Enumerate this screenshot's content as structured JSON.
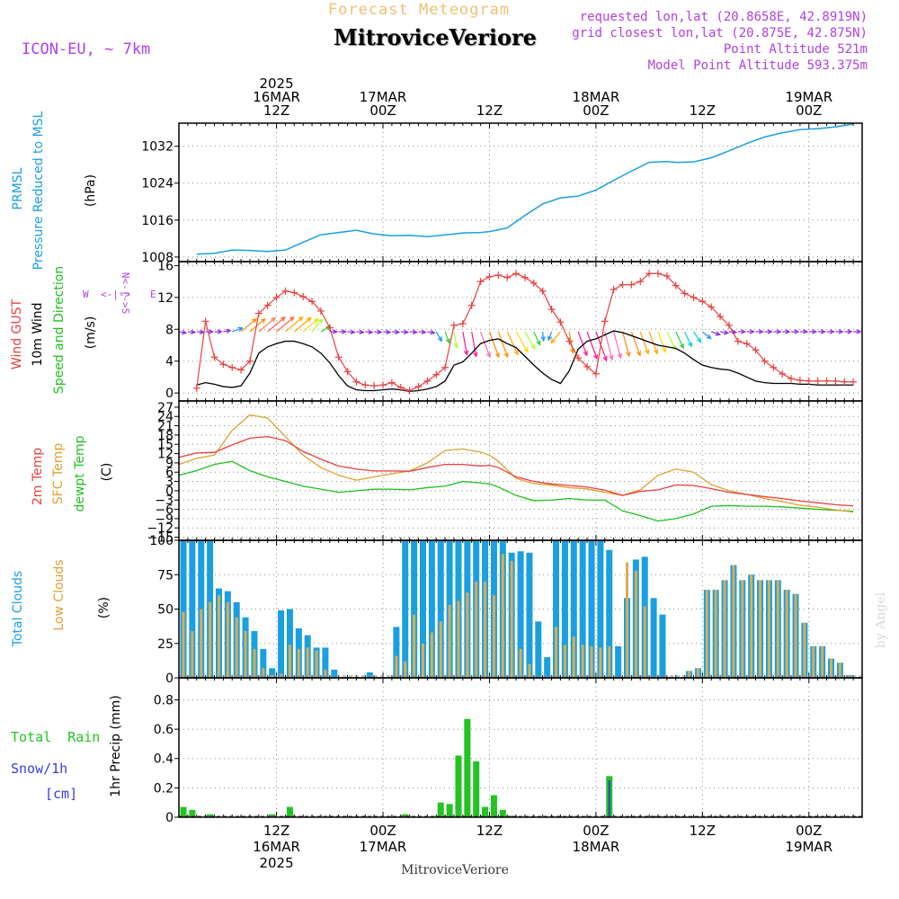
{
  "header": {
    "forecast_title": "Forecast Meteogram",
    "location": "MitroviceVeriore",
    "model": "ICON-EU, ~ 7km",
    "requested": "requested lon,lat (20.8658E, 42.8919N)",
    "closest": "grid closest lon,lat (20.875E, 42.875N)",
    "point_alt": "Point Altitude 521m",
    "model_alt": "Model Point Altitude 593.375m",
    "footer": "MitroviceVeriore",
    "credit": "by Angel"
  },
  "time_axis": {
    "top_labels": [
      {
        "h": 12,
        "lines": [
          "2025",
          "16MAR",
          "12Z"
        ]
      },
      {
        "h": 24,
        "lines": [
          "17MAR",
          "00Z"
        ]
      },
      {
        "h": 36,
        "lines": [
          "12Z"
        ]
      },
      {
        "h": 48,
        "lines": [
          "18MAR",
          "00Z"
        ]
      },
      {
        "h": 60,
        "lines": [
          "12Z"
        ]
      },
      {
        "h": 72,
        "lines": [
          "19MAR",
          "00Z"
        ]
      }
    ],
    "bottom_labels": [
      {
        "h": 12,
        "lines": [
          "12Z",
          "16MAR",
          "2025"
        ]
      },
      {
        "h": 24,
        "lines": [
          "00Z",
          "17MAR"
        ]
      },
      {
        "h": 36,
        "lines": [
          "12Z"
        ]
      },
      {
        "h": 48,
        "lines": [
          "00Z",
          "18MAR"
        ]
      },
      {
        "h": 60,
        "lines": [
          "12Z"
        ]
      },
      {
        "h": 72,
        "lines": [
          "00Z",
          "19MAR"
        ]
      }
    ]
  },
  "colors": {
    "pressure": "#1a9fe0",
    "gust": "#e8403f",
    "wind": "#000000",
    "t2m": "#e8403f",
    "sfc": "#e0a030",
    "dewpt": "#20c020",
    "total_clouds": "#1a9fe0",
    "low_clouds": "#d9ad55",
    "rain": "#22c322",
    "snow": "#3a3ae0",
    "header_purple": "#b040e0",
    "forecast_title": "#f0c070"
  },
  "panels": {
    "pressure": {
      "label1": "PRMSL",
      "label2": "Pressure Reduced to MSL",
      "unit": "(hPa)"
    },
    "wind": {
      "label_gust": "Wind GUST",
      "label_wind": "10m Wind",
      "label_dir": "Speed and Direction",
      "unit": "(m/s)",
      "compass_w": "W",
      "compass_e": "E",
      "compass_arrow": "<-|->",
      "compass_n": "N<-|->S"
    },
    "temp": {
      "label_t2m": "2m Temp",
      "label_sfc": "SFC Temp",
      "label_dew": "dewpt Temp",
      "unit": "(C)"
    },
    "clouds": {
      "label_total": "Total Clouds",
      "label_low": "Low Clouds",
      "unit": "(%)"
    },
    "precip": {
      "label_rain": "Total  Rain",
      "label_snow": "Snow/1h",
      "label_snow_unit": "[cm]",
      "label_axis": "1hr Precip (mm)"
    }
  },
  "chart_data": [
    {
      "type": "line",
      "name": "pressure",
      "ylim": [
        1007,
        1037
      ],
      "yticks": [
        1008,
        1016,
        1024,
        1032
      ],
      "x": [
        3,
        5,
        7,
        9,
        11,
        13,
        15,
        17,
        19,
        21,
        23,
        25,
        27,
        29,
        31,
        33,
        35,
        36,
        38,
        40,
        42,
        44,
        46,
        48,
        50,
        52,
        54,
        56,
        57,
        59,
        61,
        63,
        65,
        67,
        69,
        71,
        73,
        75,
        77
      ],
      "values": [
        1008.6,
        1008.8,
        1009.5,
        1009.4,
        1009.2,
        1009.5,
        1011.2,
        1012.8,
        1013.3,
        1013.8,
        1013.0,
        1012.6,
        1012.7,
        1012.4,
        1012.8,
        1013.2,
        1013.3,
        1013.5,
        1014.3,
        1017.0,
        1019.5,
        1020.8,
        1021.2,
        1022.5,
        1024.6,
        1026.6,
        1028.5,
        1028.7,
        1028.5,
        1028.6,
        1029.5,
        1031.0,
        1032.6,
        1034.0,
        1034.9,
        1035.6,
        1035.8,
        1036.2,
        1036.8
      ]
    },
    {
      "type": "line",
      "name": "wind",
      "ylim": [
        -1,
        16.5
      ],
      "yticks": [
        0,
        4,
        8,
        12,
        16
      ],
      "x": [
        3,
        4,
        5,
        6,
        7,
        8,
        9,
        10,
        11,
        12,
        13,
        14,
        15,
        16,
        17,
        18,
        19,
        20,
        21,
        22,
        23,
        24,
        25,
        26,
        27,
        28,
        29,
        30,
        31,
        32,
        33,
        34,
        35,
        36,
        37,
        38,
        39,
        40,
        41,
        42,
        43,
        44,
        45,
        46,
        47,
        48,
        49,
        50,
        51,
        52,
        53,
        54,
        55,
        56,
        57,
        58,
        59,
        60,
        61,
        62,
        63,
        64,
        65,
        66,
        67,
        68,
        69,
        70,
        71,
        72,
        73,
        74,
        75,
        76,
        77
      ],
      "gust": [
        0.6,
        9.0,
        4.5,
        3.6,
        3.2,
        2.9,
        4.0,
        10.0,
        11.0,
        12.0,
        12.8,
        12.6,
        12.1,
        11.5,
        10.3,
        8.2,
        4.5,
        2.7,
        1.4,
        1.0,
        0.9,
        1.0,
        1.3,
        0.7,
        0.3,
        0.8,
        1.5,
        2.3,
        3.2,
        8.5,
        8.7,
        11.0,
        14.0,
        14.6,
        14.8,
        14.5,
        15.0,
        14.5,
        13.8,
        12.8,
        10.5,
        8.9,
        6.5,
        4.4,
        3.3,
        2.4,
        9.0,
        13.0,
        13.6,
        13.6,
        14.0,
        15.0,
        15.0,
        14.7,
        13.5,
        12.5,
        12.0,
        11.5,
        10.8,
        9.6,
        8.5,
        6.5,
        6.2,
        5.4,
        4.0,
        3.2,
        2.4,
        1.8,
        1.6,
        1.5,
        1.5,
        1.5,
        1.5,
        1.4,
        1.4
      ],
      "wind": [
        1.0,
        1.3,
        1.1,
        0.8,
        0.7,
        0.9,
        2.5,
        5.0,
        5.8,
        6.2,
        6.5,
        6.5,
        6.2,
        5.8,
        5.0,
        3.8,
        2.2,
        0.9,
        0.4,
        0.3,
        0.3,
        0.4,
        0.5,
        0.4,
        0.2,
        0.3,
        0.5,
        0.8,
        1.5,
        3.5,
        3.9,
        5.0,
        6.2,
        6.6,
        6.8,
        6.2,
        5.7,
        4.6,
        3.5,
        2.5,
        1.7,
        1.2,
        2.8,
        5.5,
        6.5,
        6.8,
        7.3,
        7.8,
        7.6,
        7.2,
        6.8,
        6.4,
        6.0,
        5.8,
        5.6,
        5.0,
        4.2,
        3.5,
        3.2,
        3.0,
        2.9,
        2.5,
        2.0,
        1.5,
        1.3,
        1.2,
        1.2,
        1.2,
        1.1,
        1.1,
        1.0,
        1.0,
        1.0,
        1.0,
        1.0
      ],
      "barb_x": [
        1,
        2,
        3,
        4,
        5,
        6,
        7,
        8,
        9,
        10,
        11,
        12,
        13,
        14,
        15,
        16,
        17,
        18,
        19,
        20,
        21,
        22,
        23,
        24,
        25,
        26,
        27,
        28,
        29,
        30,
        31,
        32,
        33,
        34,
        35,
        36,
        37,
        38,
        39,
        40,
        41,
        42,
        43,
        44,
        45,
        46,
        47,
        48,
        49,
        50,
        51,
        52,
        53,
        54,
        55,
        56,
        57,
        58,
        59,
        60,
        61,
        62,
        63,
        64,
        65,
        66,
        67,
        68,
        69,
        70,
        71,
        72,
        73,
        74,
        75,
        76,
        77
      ],
      "barb_dir_deg": [
        -10,
        -5,
        -5,
        0,
        0,
        10,
        20,
        40,
        40,
        40,
        40,
        40,
        40,
        40,
        40,
        50,
        30,
        0,
        0,
        -5,
        -5,
        -5,
        -5,
        -5,
        -5,
        -5,
        -5,
        -5,
        -10,
        -60,
        -70,
        -80,
        -80,
        -80,
        -70,
        -70,
        -70,
        -65,
        -60,
        -60,
        -65,
        -85,
        -110,
        -130,
        -80,
        -70,
        -70,
        -70,
        -75,
        -75,
        -75,
        -70,
        -70,
        -70,
        -70,
        -65,
        -65,
        -65,
        -55,
        -40,
        -20,
        -10,
        -5,
        0,
        0,
        0,
        0,
        0,
        0,
        0,
        0,
        0,
        0,
        0,
        0,
        0,
        0
      ],
      "barb_len": [
        8,
        8,
        8,
        8,
        8,
        8,
        12,
        22,
        22,
        24,
        25,
        25,
        25,
        24,
        22,
        18,
        12,
        8,
        8,
        8,
        8,
        8,
        8,
        8,
        8,
        8,
        8,
        8,
        8,
        12,
        13,
        18,
        26,
        28,
        30,
        30,
        30,
        28,
        26,
        22,
        16,
        10,
        10,
        16,
        24,
        28,
        32,
        34,
        32,
        30,
        28,
        28,
        26,
        26,
        24,
        22,
        20,
        18,
        14,
        12,
        10,
        9,
        8,
        8,
        8,
        8,
        8,
        8,
        8,
        8,
        8,
        8,
        8,
        8,
        8,
        8,
        8
      ],
      "barb_colors": [
        "#8a2be2",
        "#8a2be2",
        "#8a2be2",
        "#8a2be2",
        "#8a2be2",
        "#8a2be2",
        "#1e90ff",
        "#ff8c00",
        "#ff8c00",
        "#ff7f50",
        "#ff6347",
        "#ff6347",
        "#ffa500",
        "#ffa500",
        "#ffd700",
        "#adff2f",
        "#32cd32",
        "#8a2be2",
        "#8a2be2",
        "#8a2be2",
        "#8a2be2",
        "#8a2be2",
        "#8a2be2",
        "#8a2be2",
        "#8a2be2",
        "#8a2be2",
        "#8a2be2",
        "#8a2be2",
        "#8a2be2",
        "#1e90ff",
        "#32cd32",
        "#adff2f",
        "#ff1493",
        "#ff1493",
        "#ff69b4",
        "#ff8c00",
        "#ff8c00",
        "#ffa500",
        "#ffd700",
        "#adff2f",
        "#32cd32",
        "#1e90ff",
        "#1e90ff",
        "#ffa500",
        "#ff8c00",
        "#ff1493",
        "#ff1493",
        "#ff1493",
        "#ff69b4",
        "#ff69b4",
        "#ff8c00",
        "#ff8c00",
        "#ffa500",
        "#ffa500",
        "#ffd700",
        "#adff2f",
        "#32cd32",
        "#00ced1",
        "#00ced1",
        "#1e90ff",
        "#8a2be2",
        "#8a2be2",
        "#8a2be2",
        "#8a2be2",
        "#8a2be2",
        "#8a2be2",
        "#8a2be2",
        "#8a2be2",
        "#8a2be2",
        "#8a2be2",
        "#8a2be2",
        "#8a2be2",
        "#8a2be2",
        "#8a2be2",
        "#8a2be2",
        "#8a2be2",
        "#8a2be2"
      ]
    },
    {
      "type": "line",
      "name": "temperature",
      "ylim": [
        -16,
        29
      ],
      "yticks": [
        -15,
        -12,
        -9,
        -6,
        -3,
        0,
        3,
        6,
        9,
        12,
        15,
        18,
        21,
        24,
        27
      ],
      "x": [
        1,
        3,
        5,
        7,
        9,
        11,
        13,
        15,
        17,
        19,
        21,
        23,
        25,
        27,
        29,
        31,
        33,
        35,
        36,
        37,
        39,
        41,
        43,
        45,
        47,
        49,
        51,
        53,
        55,
        57,
        59,
        61,
        63,
        65,
        67,
        69,
        71,
        73,
        75,
        77
      ],
      "t2m": [
        10.8,
        12.2,
        12.4,
        14.8,
        17.0,
        17.5,
        16.2,
        12.7,
        10.2,
        8.0,
        7.0,
        6.4,
        6.4,
        6.3,
        7.5,
        8.5,
        8.5,
        8.0,
        8.2,
        7.5,
        4.5,
        3.0,
        2.2,
        1.7,
        1.2,
        0.2,
        -1.5,
        -0.2,
        0.3,
        1.9,
        1.7,
        0.7,
        -0.5,
        -1.2,
        -1.9,
        -2.5,
        -3.3,
        -3.9,
        -4.5,
        -4.9
      ],
      "sfc": [
        8.5,
        10.5,
        11.5,
        19.5,
        24.5,
        23.5,
        17.5,
        11.5,
        7.5,
        5.0,
        3.4,
        4.5,
        5.5,
        6.4,
        9.0,
        13.0,
        13.5,
        12.5,
        11.5,
        9.5,
        4.0,
        2.3,
        1.8,
        1.0,
        0.6,
        -0.5,
        -1.5,
        0.3,
        5.0,
        7.0,
        6.0,
        2.0,
        0.0,
        -1.2,
        -2.5,
        -3.5,
        -4.7,
        -5.3,
        -6.2,
        -6.9
      ],
      "dewpt": [
        5.0,
        6.5,
        8.5,
        9.5,
        6.5,
        4.5,
        3.0,
        1.5,
        0.5,
        -0.5,
        0.0,
        0.5,
        0.5,
        0.3,
        1.0,
        1.5,
        3.0,
        2.5,
        2.2,
        1.2,
        -1.5,
        -3.2,
        -3.0,
        -2.5,
        -3.0,
        -3.0,
        -6.5,
        -8.0,
        -9.8,
        -9.0,
        -7.5,
        -5.0,
        -4.8,
        -5.0,
        -5.0,
        -5.2,
        -5.6,
        -6.0,
        -6.3,
        -6.6
      ]
    },
    {
      "type": "bar",
      "name": "clouds",
      "ylim": [
        0,
        100
      ],
      "yticks": [
        0,
        25,
        50,
        75,
        100
      ],
      "x": [
        1,
        2,
        3,
        4,
        5,
        6,
        7,
        8,
        9,
        10,
        11,
        12,
        13,
        14,
        15,
        16,
        17,
        18,
        19,
        20,
        21,
        22,
        23,
        24,
        25,
        26,
        27,
        28,
        29,
        30,
        31,
        32,
        33,
        34,
        35,
        36,
        37,
        38,
        39,
        40,
        41,
        42,
        43,
        44,
        45,
        46,
        47,
        48,
        49,
        50,
        51,
        52,
        53,
        54,
        55,
        56,
        57,
        58,
        59,
        60,
        61,
        62,
        63,
        64,
        65,
        66,
        67,
        68,
        69,
        70,
        71,
        72,
        73,
        74,
        75,
        76,
        77
      ],
      "total": [
        100,
        100,
        100,
        100,
        65,
        63,
        55,
        44,
        34,
        21,
        7,
        49,
        50,
        36,
        31,
        22,
        22,
        6,
        0,
        0,
        0,
        4,
        0,
        0,
        37,
        100,
        100,
        100,
        100,
        100,
        100,
        100,
        100,
        100,
        100,
        100,
        100,
        91,
        92,
        91,
        41,
        15,
        100,
        100,
        100,
        100,
        100,
        100,
        93,
        23,
        58,
        86,
        88,
        58,
        46,
        0,
        0,
        5,
        7,
        64,
        64,
        71,
        82,
        71,
        75,
        71,
        71,
        71,
        64,
        61,
        40,
        23,
        23,
        14,
        11,
        2,
        0
      ],
      "low": [
        48,
        34,
        50,
        55,
        60,
        55,
        44,
        34,
        21,
        7,
        2,
        3,
        24,
        21,
        22,
        20,
        6,
        0,
        0,
        0,
        0,
        0,
        0,
        0,
        16,
        12,
        46,
        25,
        33,
        41,
        53,
        56,
        62,
        70,
        70,
        60,
        90,
        85,
        21,
        10,
        0,
        0,
        37,
        24,
        30,
        24,
        23,
        22,
        23,
        0,
        84,
        78,
        52,
        0,
        0,
        0,
        0,
        5,
        7,
        64,
        64,
        71,
        82,
        71,
        75,
        71,
        71,
        71,
        64,
        61,
        40,
        23,
        23,
        14,
        11,
        2,
        0
      ]
    },
    {
      "type": "bar",
      "name": "precip",
      "ylim": [
        0,
        0.95
      ],
      "yticks": [
        0,
        0.2,
        0.4,
        0.6,
        0.8
      ],
      "x": [
        1,
        2,
        4,
        11,
        13,
        26,
        30,
        31,
        32,
        33,
        34,
        35,
        36,
        37,
        38,
        49,
        54
      ],
      "rain": [
        0.07,
        0.05,
        0.02,
        0.02,
        0.07,
        0.02,
        0.1,
        0.09,
        0.42,
        0.67,
        0.38,
        0.07,
        0.15,
        0.05,
        0.01,
        0.28,
        0.01
      ],
      "snow_x": [
        49
      ],
      "snow": [
        0.25
      ]
    }
  ]
}
